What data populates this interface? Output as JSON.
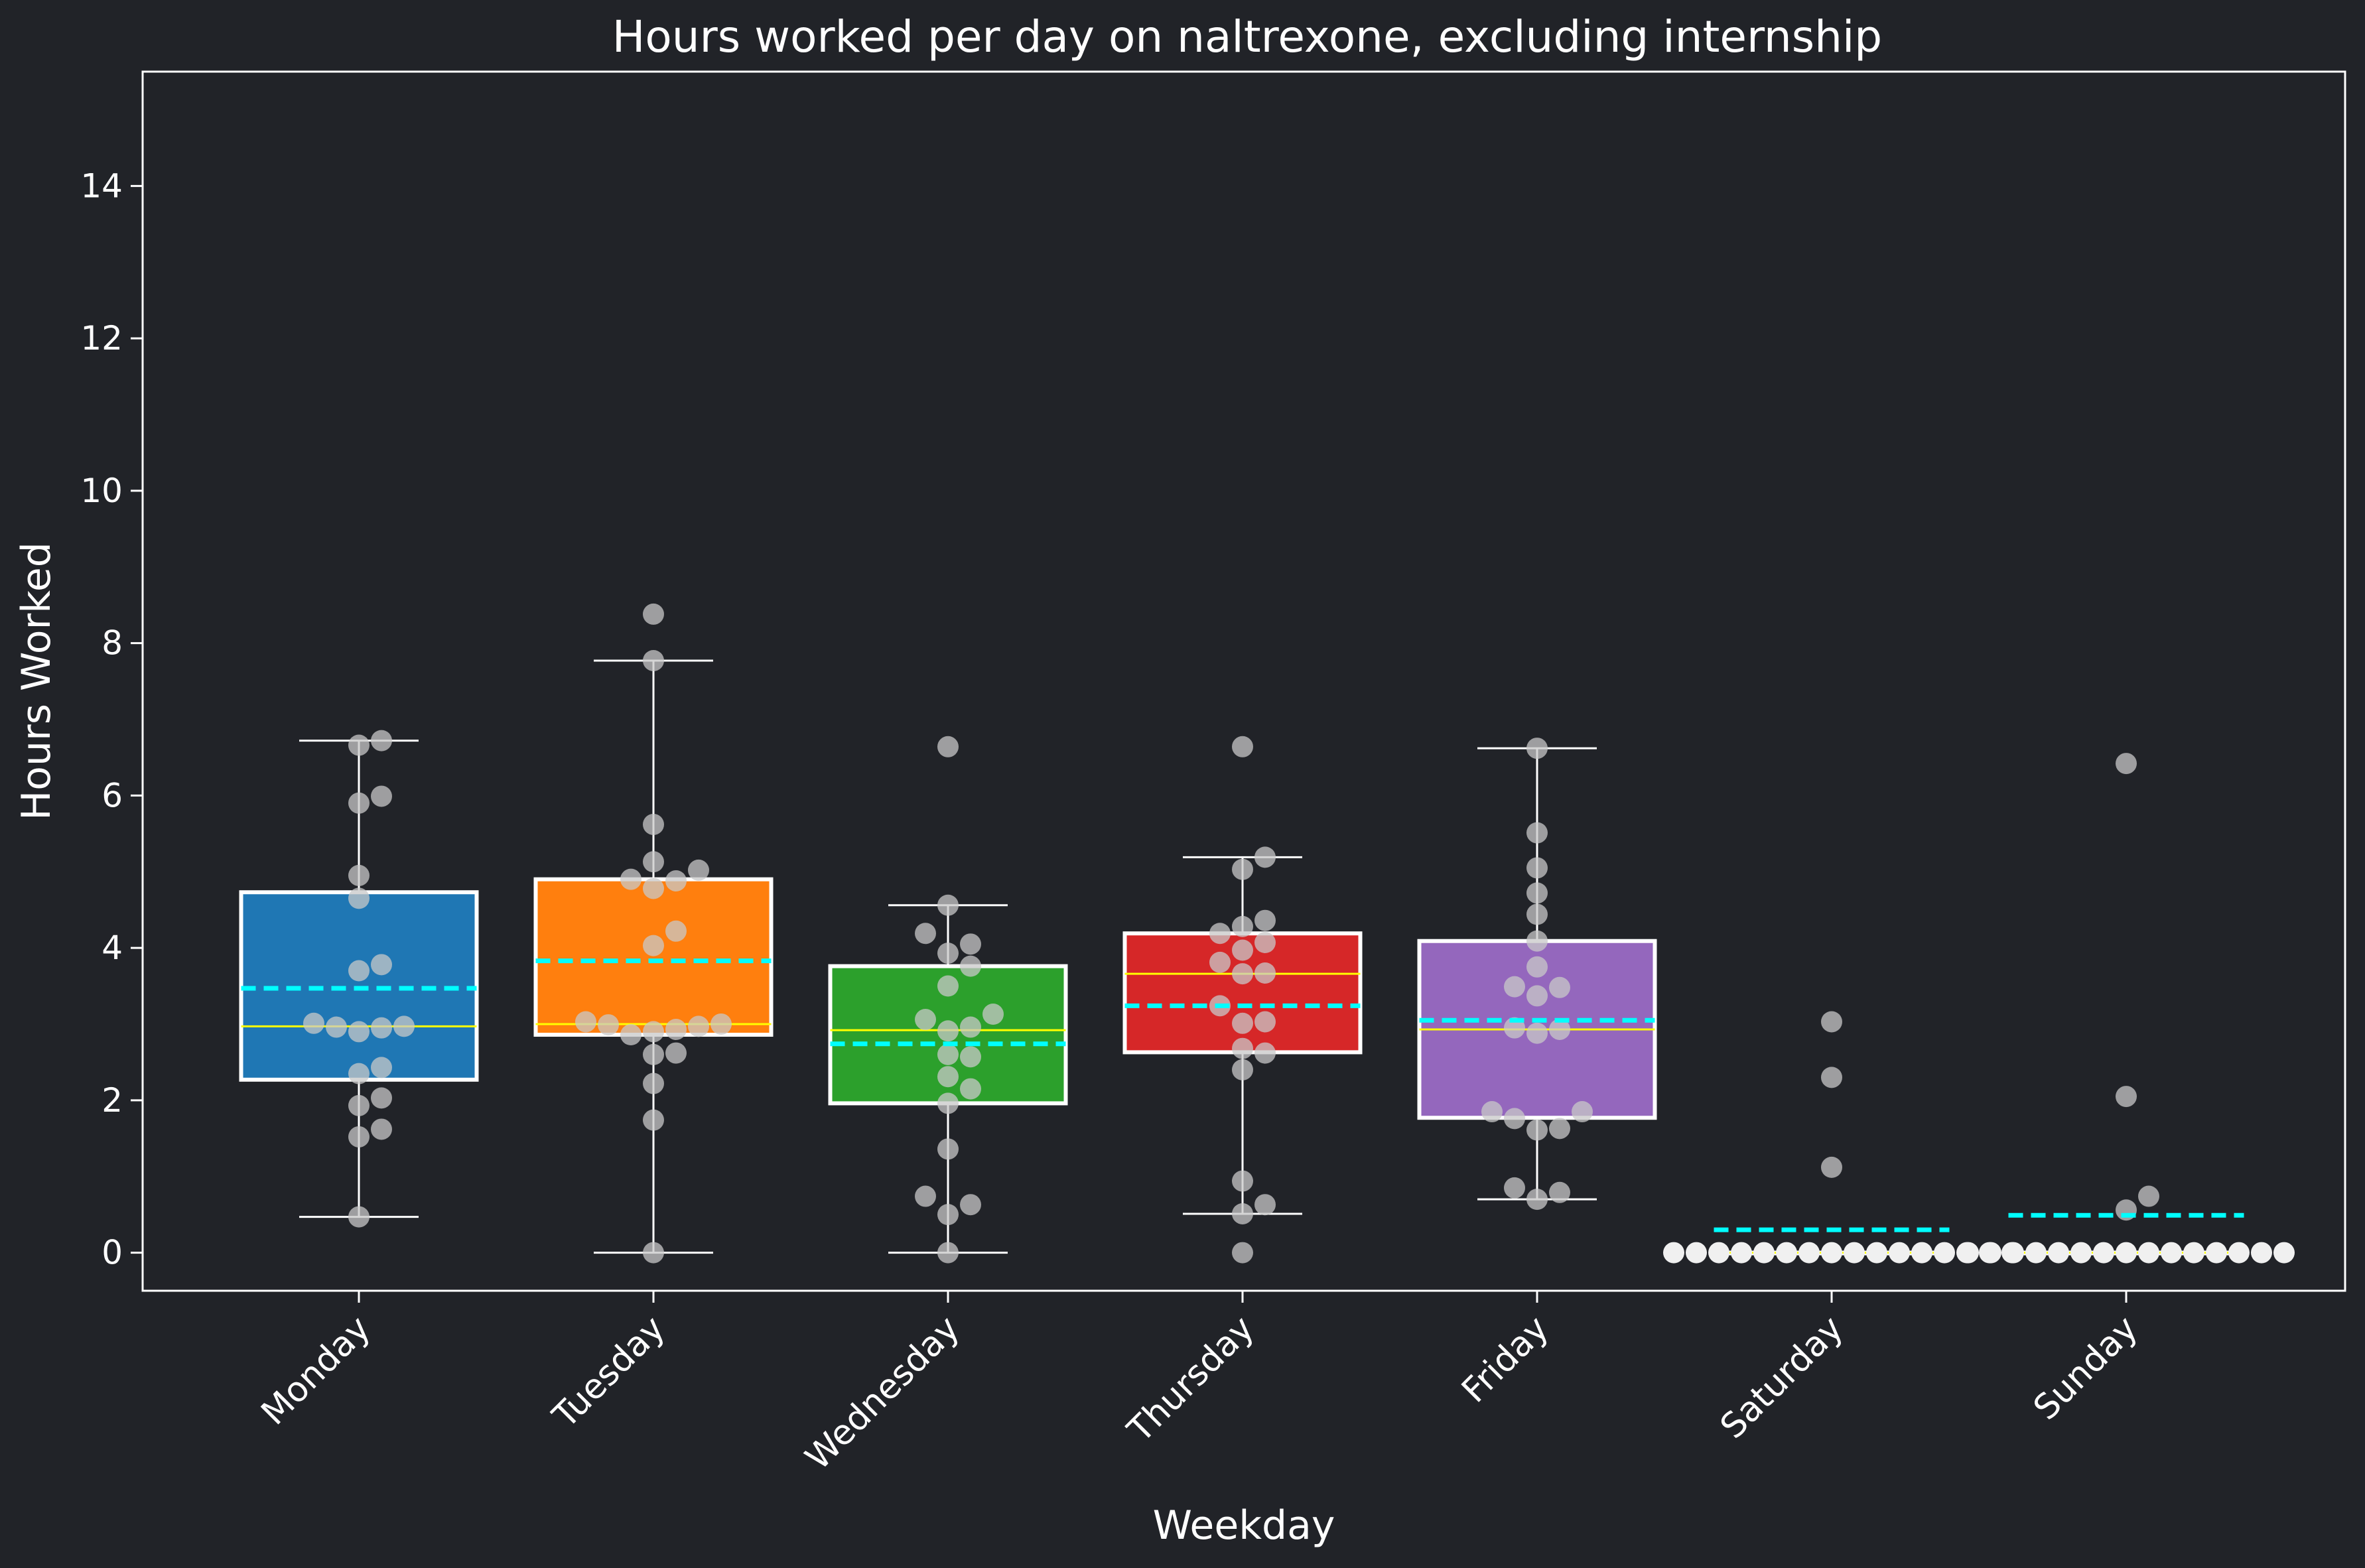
{
  "chart_data": {
    "type": "box",
    "title": "Hours worked per day on naltrexone, excluding internship",
    "xlabel": "Weekday",
    "ylabel": "Hours Worked",
    "ylim": [
      -0.5,
      15.5
    ],
    "yticks": [
      0,
      2,
      4,
      6,
      8,
      10,
      12,
      14
    ],
    "grid": false,
    "legend": "none",
    "colors": {
      "background": "#212328",
      "text": "#ffffff",
      "median": "#ffff00",
      "mean": "#00ffff",
      "point": "#c8c8c8"
    },
    "categories": [
      "Monday",
      "Tuesday",
      "Wednesday",
      "Thursday",
      "Friday",
      "Saturday",
      "Sunday"
    ],
    "boxes": [
      {
        "category": "Monday",
        "color": "#1f77b4",
        "whisker_low": 0.47,
        "q1": 2.27,
        "median": 2.97,
        "q3": 4.73,
        "whisker_high": 6.72,
        "mean": 3.47,
        "points": [
          6.72,
          6.66,
          5.99,
          5.9,
          4.95,
          4.65,
          3.78,
          3.7,
          3.01,
          2.96,
          2.9,
          2.95,
          2.97,
          2.43,
          2.35,
          2.03,
          1.93,
          1.62,
          1.52,
          0.47
        ]
      },
      {
        "category": "Tuesday",
        "color": "#ff7f0e",
        "whisker_low": 0.0,
        "q1": 2.86,
        "median": 3.0,
        "q3": 4.9,
        "whisker_high": 7.77,
        "mean": 3.83,
        "points": [
          8.38,
          7.77,
          5.62,
          5.13,
          5.02,
          4.88,
          4.9,
          4.78,
          4.22,
          4.03,
          3.03,
          2.99,
          2.93,
          2.86,
          2.9,
          2.97,
          3.0,
          2.62,
          2.6,
          2.22,
          1.74,
          0.0
        ]
      },
      {
        "category": "Wednesday",
        "color": "#2ca02c",
        "whisker_low": 0.0,
        "q1": 1.96,
        "median": 2.92,
        "q3": 3.76,
        "whisker_high": 4.56,
        "mean": 2.74,
        "points": [
          6.64,
          4.56,
          4.19,
          4.05,
          3.93,
          3.76,
          3.5,
          3.13,
          3.06,
          2.96,
          2.91,
          2.6,
          2.57,
          2.31,
          2.15,
          1.96,
          1.36,
          0.74,
          0.63,
          0.5,
          0.0
        ]
      },
      {
        "category": "Thursday",
        "color": "#d62728",
        "whisker_low": 0.51,
        "q1": 2.63,
        "median": 3.66,
        "q3": 4.19,
        "whisker_high": 5.19,
        "mean": 3.24,
        "points": [
          6.64,
          5.19,
          5.03,
          4.36,
          4.28,
          4.19,
          4.07,
          3.97,
          3.81,
          3.66,
          3.67,
          3.24,
          3.03,
          3.01,
          2.68,
          2.62,
          2.4,
          0.94,
          0.63,
          0.51,
          0.0
        ]
      },
      {
        "category": "Friday",
        "color": "#9467bd",
        "whisker_low": 0.7,
        "q1": 1.77,
        "median": 2.93,
        "q3": 4.09,
        "whisker_high": 6.62,
        "mean": 3.05,
        "points": [
          6.62,
          5.51,
          5.05,
          4.72,
          4.44,
          4.09,
          3.75,
          3.49,
          3.48,
          3.37,
          2.95,
          2.93,
          2.88,
          1.85,
          1.85,
          1.76,
          1.63,
          1.61,
          0.85,
          0.79,
          0.7
        ]
      },
      {
        "category": "Saturday",
        "color": "#8c564b",
        "whisker_low": 0.0,
        "q1": 0.0,
        "median": 0.0,
        "q3": 0.0,
        "whisker_high": 0.0,
        "mean": 0.3,
        "points": [
          3.03,
          2.3,
          1.12,
          0,
          0,
          0,
          0,
          0,
          0,
          0,
          0,
          0,
          0,
          0,
          0,
          0,
          0,
          0,
          0
        ]
      },
      {
        "category": "Sunday",
        "color": "#e377c2",
        "whisker_low": 0.0,
        "q1": 0.0,
        "median": 0.0,
        "q3": 0.0,
        "whisker_high": 0.0,
        "mean": 0.49,
        "points": [
          6.42,
          2.05,
          0.74,
          0.56,
          0,
          0,
          0,
          0,
          0,
          0,
          0,
          0,
          0,
          0,
          0,
          0,
          0,
          0,
          0
        ]
      }
    ]
  }
}
